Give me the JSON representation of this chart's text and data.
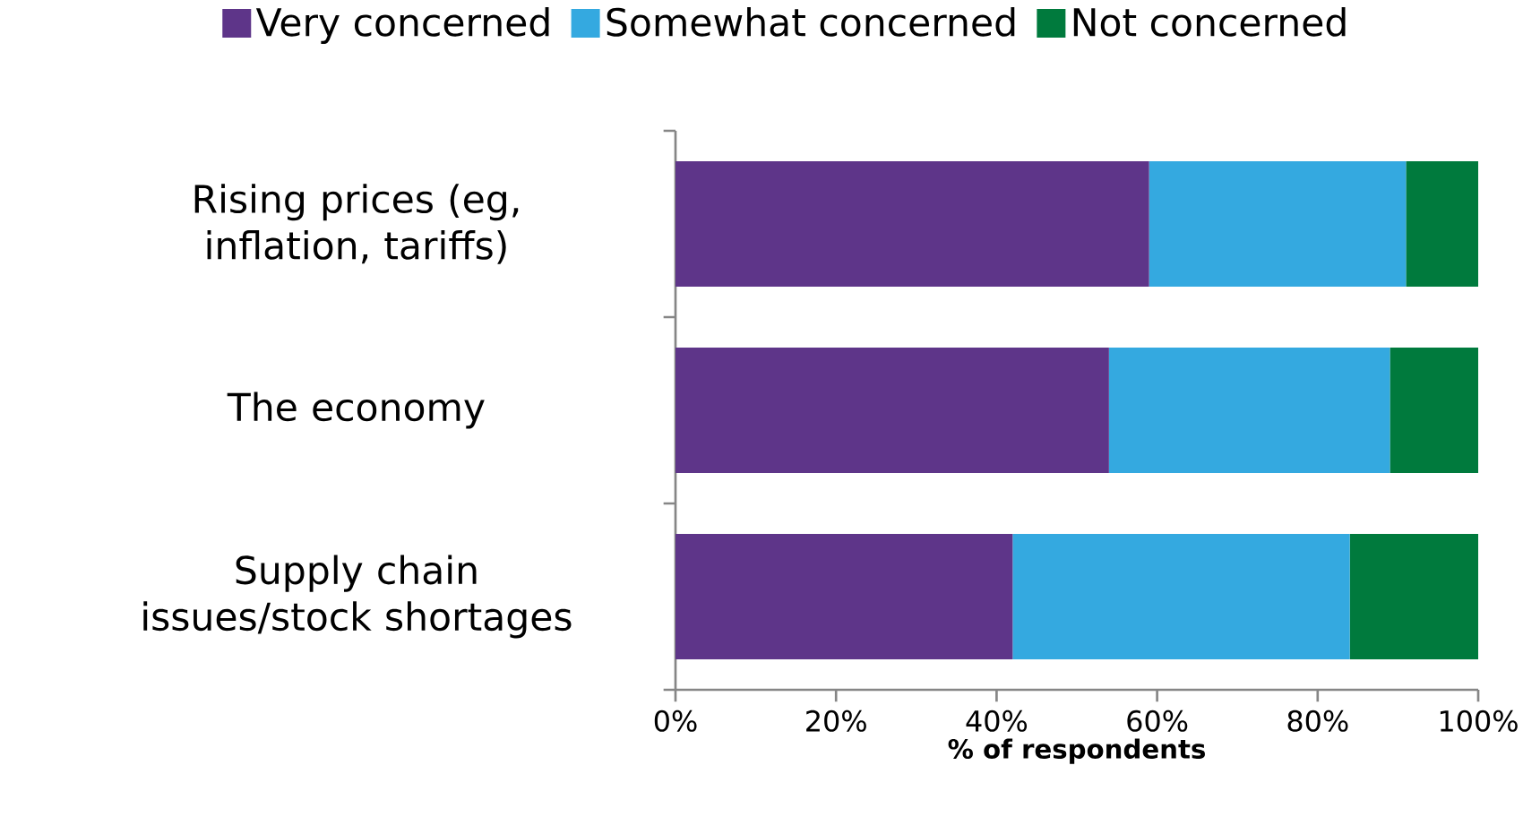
{
  "chart_data": {
    "type": "bar",
    "orientation": "horizontal",
    "stacked": true,
    "categories": [
      "Rising prices (eg, inflation, tariffs)",
      "The economy",
      "Supply chain issues/stock shortages"
    ],
    "series": [
      {
        "name": "Very concerned",
        "color": "#5e3589",
        "values": [
          59,
          54,
          42
        ]
      },
      {
        "name": "Somewhat concerned",
        "color": "#34a9e0",
        "values": [
          32,
          35,
          42
        ]
      },
      {
        "name": "Not concerned",
        "color": "#007a3d",
        "values": [
          9,
          11,
          16
        ]
      }
    ],
    "xlabel": "% of respondents",
    "xlim": [
      0,
      100
    ],
    "xticks": [
      {
        "value": 0,
        "label": "0%"
      },
      {
        "value": 20,
        "label": "20%"
      },
      {
        "value": 40,
        "label": "40%"
      },
      {
        "value": 60,
        "label": "60%"
      },
      {
        "value": 80,
        "label": "80%"
      },
      {
        "value": 100,
        "label": "100%"
      }
    ],
    "legend": "top",
    "grid": false
  }
}
